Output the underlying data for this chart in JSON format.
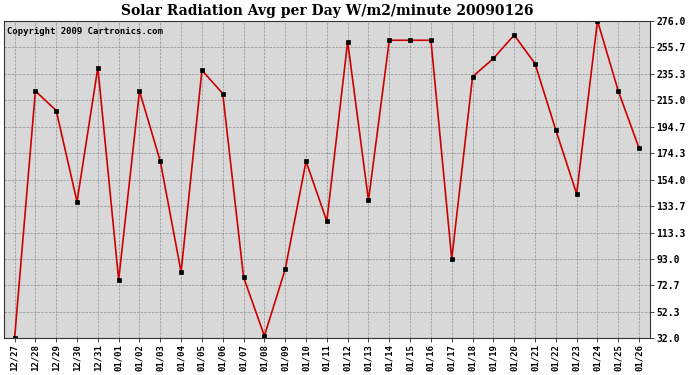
{
  "title": "Solar Radiation Avg per Day W/m2/minute 20090126",
  "copyright_text": "Copyright 2009 Cartronics.com",
  "line_color": "#cc0000",
  "marker_color": "#000000",
  "bg_color": "#ffffff",
  "plot_bg_color": "#d8d8d8",
  "grid_color": "#888888",
  "dates": [
    "12/27",
    "12/28",
    "12/29",
    "12/30",
    "12/31",
    "01/01",
    "01/02",
    "01/03",
    "01/04",
    "01/05",
    "01/06",
    "01/07",
    "01/08",
    "01/09",
    "01/10",
    "01/11",
    "01/12",
    "01/13",
    "01/14",
    "01/15",
    "01/16",
    "01/17",
    "01/18",
    "01/19",
    "01/20",
    "01/21",
    "01/22",
    "01/23",
    "01/24",
    "01/25",
    "01/26"
  ],
  "values": [
    32.0,
    222.0,
    207.0,
    137.0,
    240.0,
    77.0,
    222.0,
    168.0,
    83.0,
    238.0,
    220.0,
    79.0,
    34.0,
    85.0,
    168.0,
    122.0,
    260.0,
    138.0,
    261.0,
    261.0,
    261.0,
    93.0,
    233.0,
    247.0,
    265.0,
    243.0,
    192.0,
    143.0,
    276.0,
    222.0,
    178.0
  ],
  "yticks": [
    32.0,
    52.3,
    72.7,
    93.0,
    113.3,
    133.7,
    154.0,
    174.3,
    194.7,
    215.0,
    235.3,
    255.7,
    276.0
  ],
  "ymin": 32.0,
  "ymax": 276.0
}
